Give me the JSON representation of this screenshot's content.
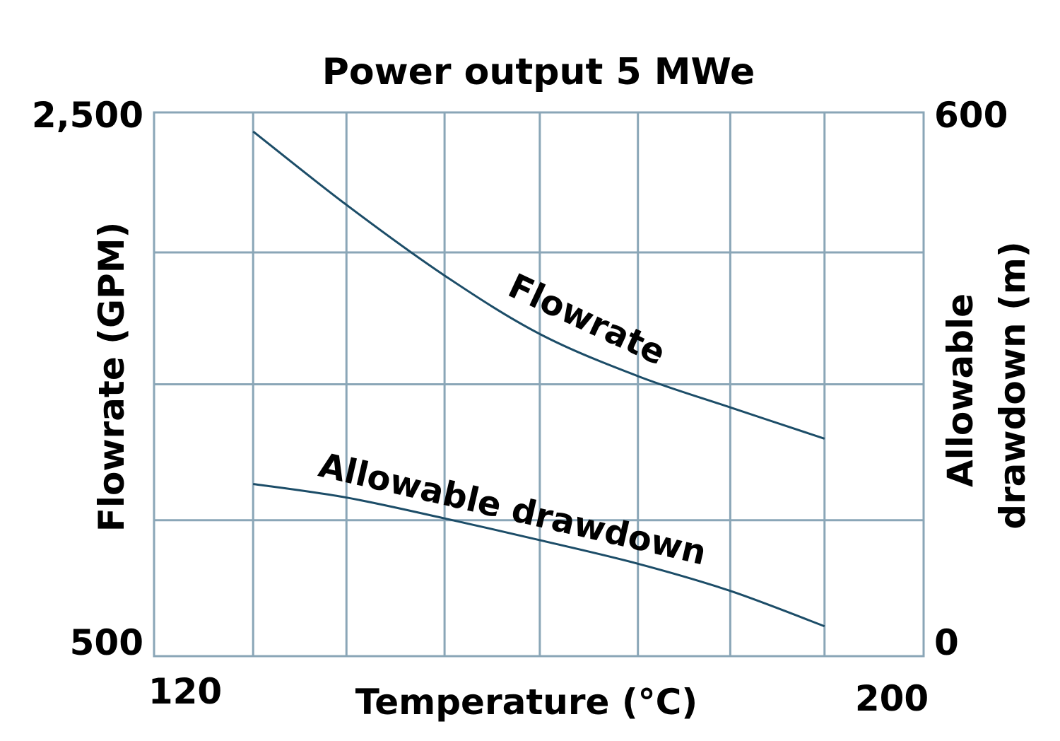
{
  "chart_data": {
    "type": "line",
    "title": "Power output 5 MWe",
    "xlabel": "Temperature (°C)",
    "ylabel_left": "Flowrate (GPM)",
    "ylabel_right_line1": "Allowable",
    "ylabel_right_line2": "drawdown (m)",
    "xlim": [
      120,
      200
    ],
    "ylim_left": [
      500,
      2500
    ],
    "ylim_right": [
      0,
      600
    ],
    "x_tick_labels": [
      "120",
      "200"
    ],
    "y_left_tick_labels": [
      "2,500",
      "500"
    ],
    "y_right_tick_labels": [
      "600",
      "0"
    ],
    "grid": true,
    "x_grid": [
      130.3,
      140,
      150.2,
      160.1,
      170.3,
      179.9,
      189.7
    ],
    "y_left_grid": [
      1985,
      1500,
      1000
    ],
    "series": [
      {
        "name": "Flowrate",
        "axis": "left",
        "x": [
          130.3,
          140,
          150.2,
          160.1,
          170.3,
          179.9,
          189.7
        ],
        "y": [
          2430,
          2160,
          1900,
          1685,
          1530,
          1415,
          1300
        ]
      },
      {
        "name": "Allowable drawdown",
        "axis": "right",
        "x": [
          130.3,
          140,
          150.2,
          160.1,
          170.3,
          179.9,
          189.7
        ],
        "y": [
          190,
          175,
          152,
          128,
          102,
          72,
          33
        ]
      }
    ],
    "series_label_positions": [
      {
        "series": "Flowrate",
        "x": 164.5,
        "y": 1700,
        "angle": 25
      },
      {
        "series": "Allowable drawdown",
        "x": 157,
        "y": 150,
        "angle": 13
      }
    ]
  }
}
